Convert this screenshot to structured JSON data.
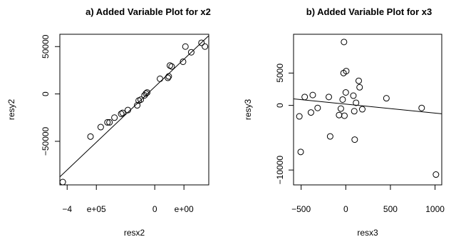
{
  "chart_data": [
    {
      "type": "scatter",
      "title": "a) Added Variable Plot for x2",
      "xlabel": "resx2",
      "ylabel": "resy2",
      "xlim": [
        -425000,
        85000
      ],
      "ylim": [
        -96000,
        63000
      ],
      "x_ticks": [
        {
          "value": -400000,
          "label": "−4"
        },
        {
          "value": -300000,
          "label": "e+05"
        },
        {
          "value": -100000,
          "label": "0"
        },
        {
          "value": 0,
          "label": "e+00"
        }
      ],
      "y_ticks": [
        {
          "value": -50000,
          "label": "−50000"
        },
        {
          "value": 0,
          "label": "0"
        },
        {
          "value": 50000,
          "label": "50000"
        }
      ],
      "grid": false,
      "legend": "none",
      "fit_line": {
        "x": [
          -425000,
          85000
        ],
        "y": [
          -87500,
          61500
        ]
      },
      "points": [
        {
          "x": -415000,
          "y": -93000
        },
        {
          "x": -320000,
          "y": -45000
        },
        {
          "x": -285000,
          "y": -35000
        },
        {
          "x": -262000,
          "y": -30000
        },
        {
          "x": -255000,
          "y": -30000
        },
        {
          "x": -238000,
          "y": -25000
        },
        {
          "x": -215000,
          "y": -21000
        },
        {
          "x": -210000,
          "y": -20000
        },
        {
          "x": -192000,
          "y": -17000
        },
        {
          "x": -160000,
          "y": -12000
        },
        {
          "x": -155000,
          "y": -7000
        },
        {
          "x": -148000,
          "y": -6000
        },
        {
          "x": -135000,
          "y": -1500
        },
        {
          "x": -130000,
          "y": 500
        },
        {
          "x": -126000,
          "y": 1500
        },
        {
          "x": -82000,
          "y": 16000
        },
        {
          "x": -55000,
          "y": 17000
        },
        {
          "x": -52000,
          "y": 18500
        },
        {
          "x": -48000,
          "y": 30000
        },
        {
          "x": -42000,
          "y": 29000
        },
        {
          "x": -3000,
          "y": 34000
        },
        {
          "x": 5000,
          "y": 50000
        },
        {
          "x": 25000,
          "y": 44000
        },
        {
          "x": 60000,
          "y": 54000
        },
        {
          "x": 72000,
          "y": 50000
        }
      ]
    },
    {
      "type": "scatter",
      "title": "b) Added Variable Plot for x3",
      "xlabel": "resx3",
      "ylabel": "resy3",
      "xlim": [
        -585,
        1075
      ],
      "ylim": [
        -12300,
        11000
      ],
      "x_ticks": [
        {
          "value": -500,
          "label": "−500"
        },
        {
          "value": 0,
          "label": "0"
        },
        {
          "value": 500,
          "label": "500"
        },
        {
          "value": 1000,
          "label": "1000"
        }
      ],
      "y_ticks": [
        {
          "value": -10000,
          "label": "−10000"
        },
        {
          "value": 0,
          "label": "0"
        },
        {
          "value": 5000,
          "label": "5000"
        }
      ],
      "grid": false,
      "legend": "none",
      "fit_line": {
        "x": [
          -585,
          1075
        ],
        "y": [
          1000,
          -1300
        ]
      },
      "points": [
        {
          "x": -520,
          "y": -1700
        },
        {
          "x": -505,
          "y": -7200
        },
        {
          "x": -460,
          "y": 1300
        },
        {
          "x": -390,
          "y": -1100
        },
        {
          "x": -370,
          "y": 1600
        },
        {
          "x": -315,
          "y": -400
        },
        {
          "x": -190,
          "y": 1300
        },
        {
          "x": -175,
          "y": -4800
        },
        {
          "x": -75,
          "y": -1500
        },
        {
          "x": -55,
          "y": -500
        },
        {
          "x": -35,
          "y": 900
        },
        {
          "x": -25,
          "y": 5000
        },
        {
          "x": -20,
          "y": 9800
        },
        {
          "x": -15,
          "y": -1600
        },
        {
          "x": 0,
          "y": 2000
        },
        {
          "x": 5,
          "y": 5300
        },
        {
          "x": 85,
          "y": 1500
        },
        {
          "x": 95,
          "y": -900
        },
        {
          "x": 100,
          "y": -5300
        },
        {
          "x": 115,
          "y": 400
        },
        {
          "x": 145,
          "y": 3800
        },
        {
          "x": 155,
          "y": 2800
        },
        {
          "x": 185,
          "y": -600
        },
        {
          "x": 455,
          "y": 1100
        },
        {
          "x": 850,
          "y": -400
        },
        {
          "x": 1010,
          "y": -10700
        }
      ]
    }
  ]
}
